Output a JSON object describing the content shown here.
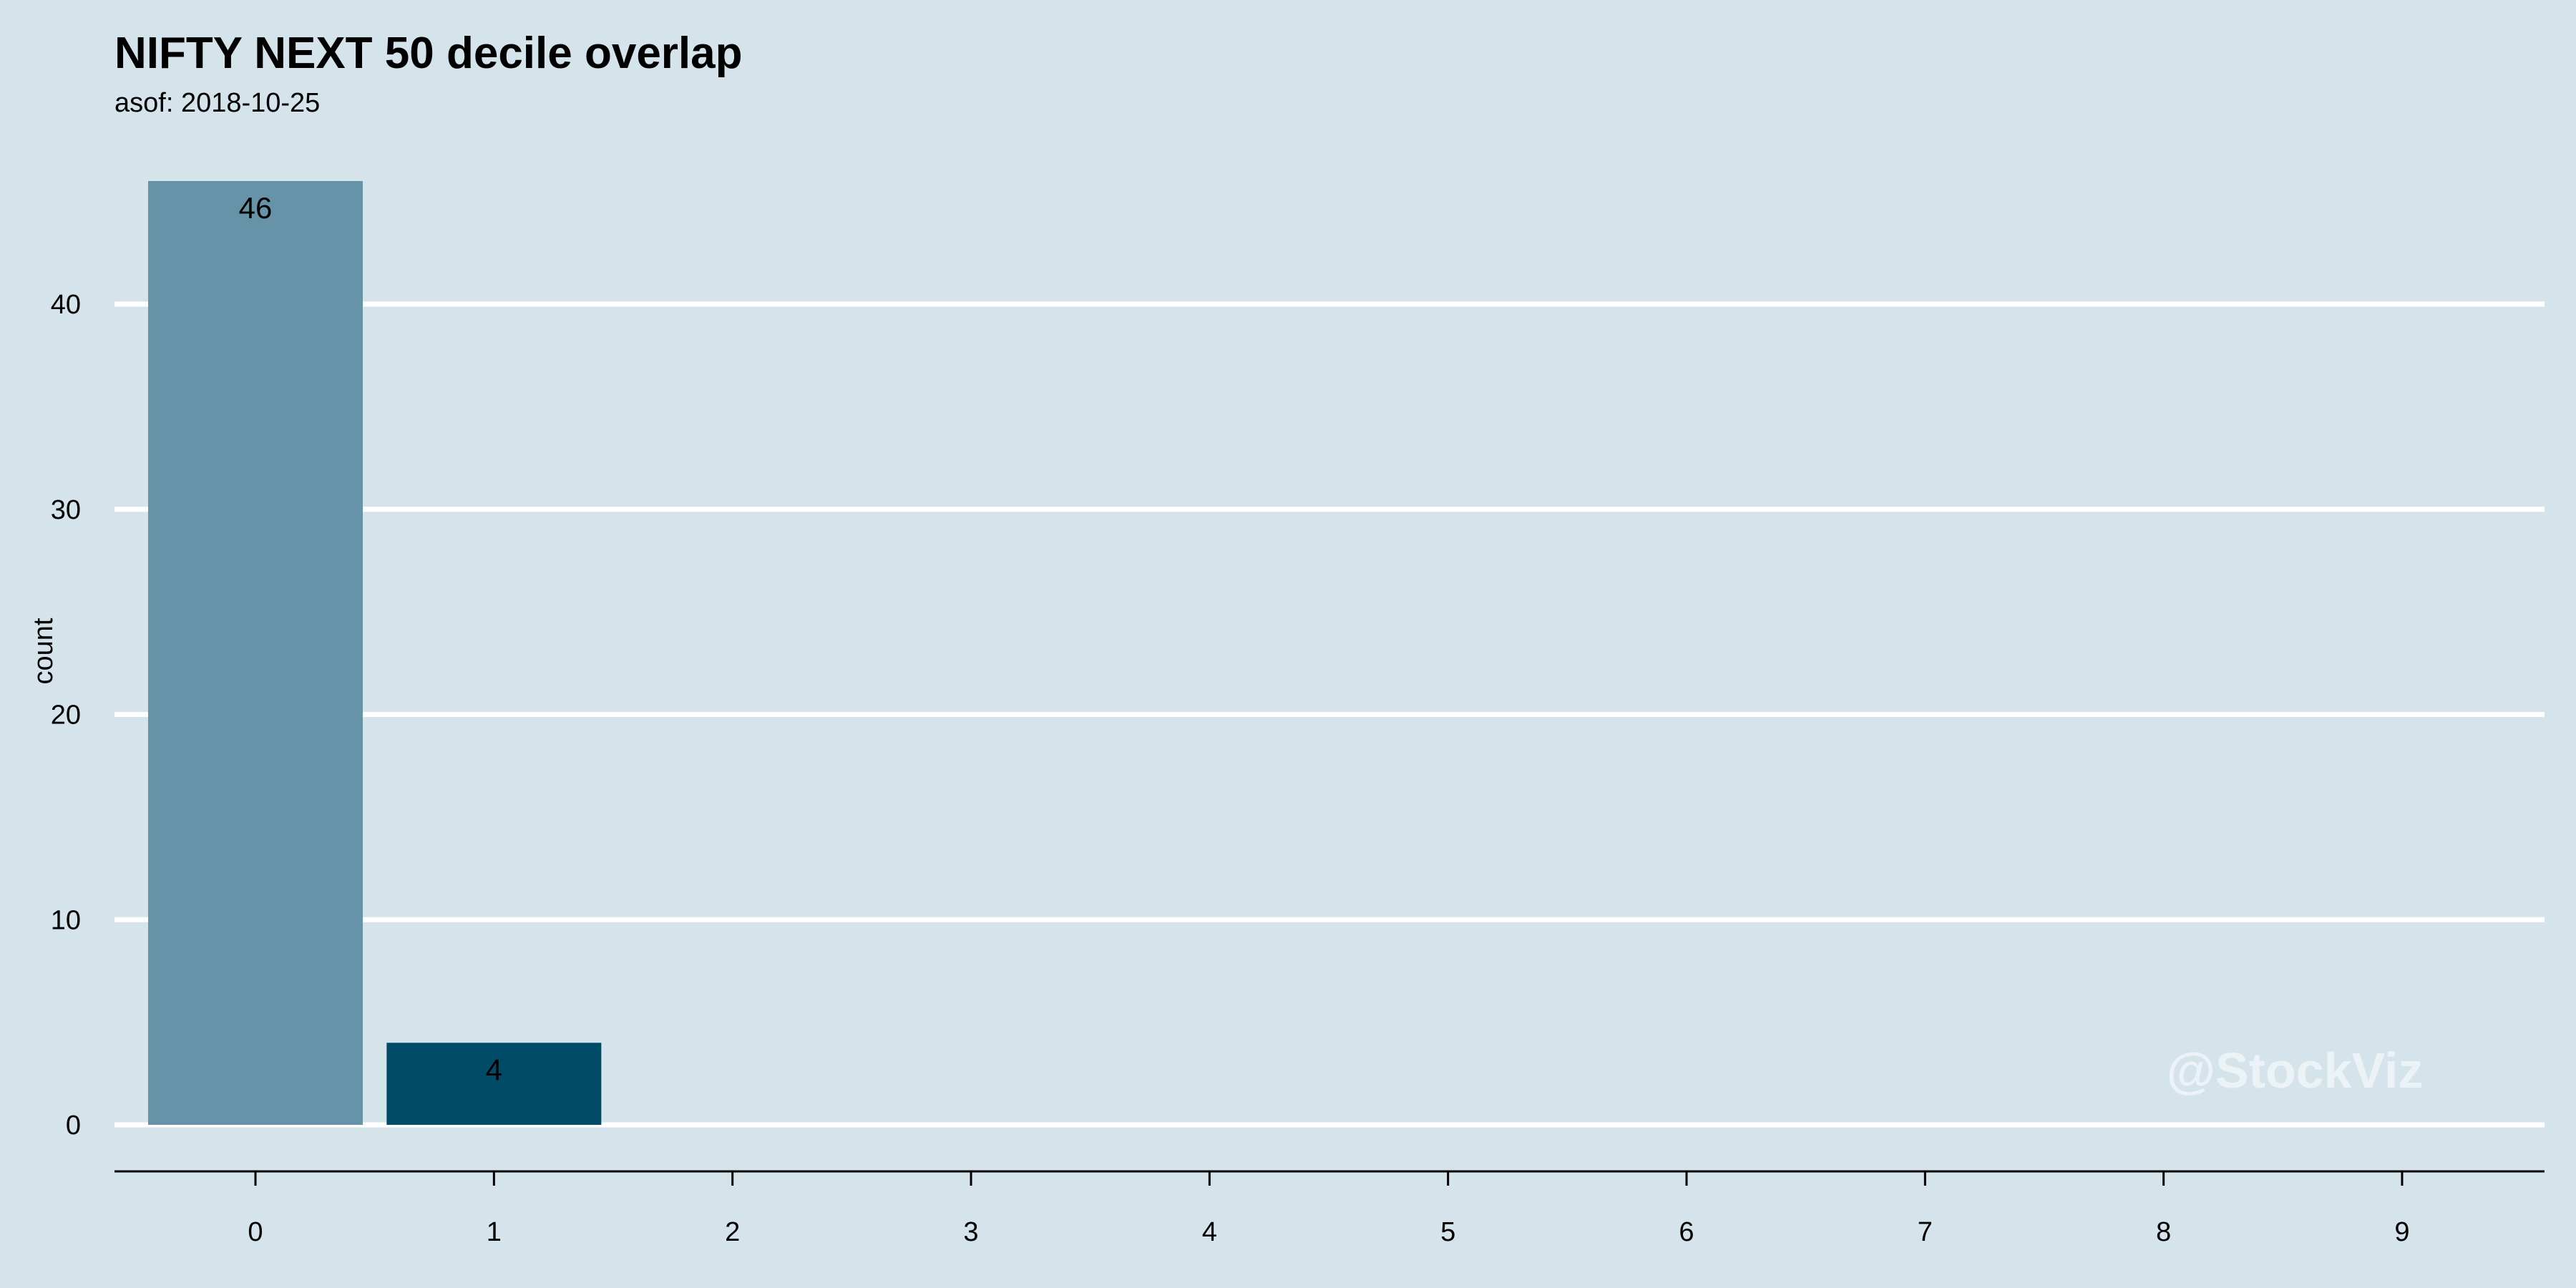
{
  "chart_data": {
    "type": "bar",
    "title": "NIFTY NEXT 50 decile overlap",
    "subtitle": "asof: 2018-10-25",
    "xlabel": "",
    "ylabel": "count",
    "categories": [
      "0",
      "1",
      "2",
      "3",
      "4",
      "5",
      "6",
      "7",
      "8",
      "9"
    ],
    "values": [
      46,
      4,
      null,
      null,
      null,
      null,
      null,
      null,
      null,
      null
    ],
    "bar_colors": [
      "#6793a8",
      "#004c68"
    ],
    "ylim": [
      0,
      46
    ],
    "y_ticks": [
      0,
      10,
      20,
      30,
      40
    ],
    "grid": "horizontal",
    "legend": "none"
  },
  "watermark": "@StockViz",
  "colors": {
    "background": "#d5e4eb",
    "grid": "#ffffff",
    "axis": "#000000"
  }
}
